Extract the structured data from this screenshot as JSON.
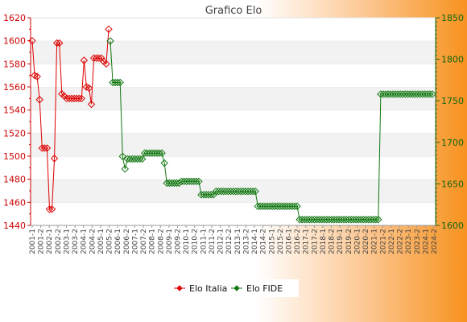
{
  "chart_data": {
    "type": "line",
    "title": "Grafico Elo",
    "x_tick_labels": [
      "2001-1",
      "2001-2",
      "2002-1",
      "2002-2",
      "2003-1",
      "2003-2",
      "2004-1",
      "2004-2",
      "2005-1",
      "2005-2",
      "2006-1",
      "2006-2",
      "2007-1",
      "2007-2",
      "2008-1",
      "2008-2",
      "2009-1",
      "2009-2",
      "2010-1",
      "2010-2",
      "2011-1",
      "2011-2",
      "2012-1",
      "2012-2",
      "2013-1",
      "2013-2",
      "2014-1",
      "2014-2",
      "2015-1",
      "2015-2",
      "2016-1",
      "2016-2",
      "2017-1",
      "2017-2",
      "2018-1",
      "2018-2",
      "2019-1",
      "2019-2",
      "2020-1",
      "2020-2",
      "2021-1",
      "2021-2",
      "2022-1",
      "2022-2",
      "2023-1",
      "2023-2",
      "2024-1",
      "2024-2"
    ],
    "y_left": {
      "min": 1440,
      "max": 1620,
      "ticks": [
        1440,
        1460,
        1480,
        1500,
        1520,
        1540,
        1560,
        1580,
        1600,
        1620
      ]
    },
    "y_right": {
      "min": 1600,
      "max": 1850,
      "ticks": [
        1600,
        1650,
        1700,
        1750,
        1800,
        1850
      ]
    },
    "grid": "horizontal bands",
    "legend_position": "bottom",
    "series": [
      {
        "name": "Elo Italia",
        "axis": "left",
        "color": "#dd0000",
        "values": [
          1600,
          1570,
          1569,
          1549,
          1507,
          1507,
          1507,
          1454,
          1454,
          1498,
          1598,
          1598,
          1554,
          1552,
          1550,
          1550,
          1550,
          1550,
          1550,
          1550,
          1550,
          1583,
          1560,
          1559,
          1545,
          1585,
          1585,
          1585,
          1585,
          1582,
          1580,
          1610
        ]
      },
      {
        "name": "Elo FIDE",
        "axis": "right",
        "color": "#117711",
        "values": [
          1822,
          1772,
          1772,
          1772,
          1772,
          1683,
          1668,
          1680,
          1680,
          1680,
          1680,
          1680,
          1680,
          1680,
          1687,
          1687,
          1687,
          1687,
          1687,
          1687,
          1687,
          1687,
          1675,
          1651,
          1651,
          1651,
          1651,
          1651,
          1651,
          1653,
          1653,
          1653,
          1653,
          1653,
          1653,
          1653,
          1653,
          1637,
          1637,
          1637,
          1637,
          1637,
          1637,
          1641,
          1641,
          1641,
          1641,
          1641,
          1641,
          1641,
          1641,
          1641,
          1641,
          1641,
          1641,
          1641,
          1641,
          1641,
          1641,
          1641,
          1623,
          1623,
          1623,
          1623,
          1623,
          1623,
          1623,
          1623,
          1623,
          1623,
          1623,
          1623,
          1623,
          1623,
          1623,
          1623,
          1623,
          1607,
          1607,
          1607,
          1607,
          1607,
          1607,
          1607,
          1607,
          1607,
          1607,
          1607,
          1607,
          1607,
          1607,
          1607,
          1607,
          1607,
          1607,
          1607,
          1607,
          1607,
          1607,
          1607,
          1607,
          1607,
          1607,
          1607,
          1607,
          1607,
          1607,
          1607,
          1607,
          1607,
          1758,
          1758,
          1758,
          1758,
          1758,
          1758,
          1758,
          1758,
          1758,
          1758,
          1758,
          1758,
          1758,
          1758,
          1758,
          1758,
          1758,
          1758,
          1758,
          1758,
          1758,
          1758
        ]
      }
    ]
  }
}
